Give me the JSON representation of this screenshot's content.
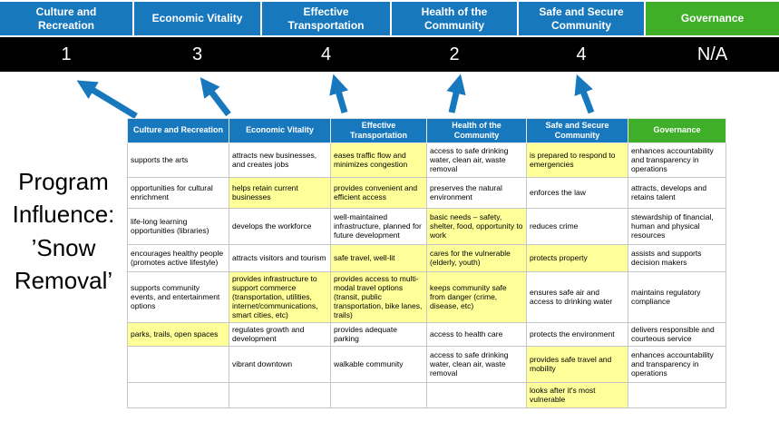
{
  "banner": {
    "columns": [
      {
        "label": "Culture and Recreation",
        "score": "1"
      },
      {
        "label": "Economic Vitality",
        "score": "3"
      },
      {
        "label": "Effective Transportation",
        "score": "4"
      },
      {
        "label": "Health of the Community",
        "score": "2"
      },
      {
        "label": "Safe and Secure Community",
        "score": "4"
      },
      {
        "label": "Governance",
        "score": "N/A"
      }
    ]
  },
  "program_label": {
    "text": "Program Influence: ’Snow Removal’"
  },
  "colors": {
    "header_blue": "#1878BE",
    "header_green": "#3FAE29",
    "score_band": "#000000",
    "highlight_yellow": "#FFFF99",
    "arrow_blue": "#1878BE"
  },
  "table": {
    "headers": [
      {
        "label": "Culture and Recreation",
        "color": "blue"
      },
      {
        "label": "Economic Vitality",
        "color": "blue"
      },
      {
        "label": "Effective Transportation",
        "color": "blue"
      },
      {
        "label": "Health of the Community",
        "color": "blue"
      },
      {
        "label": "Safe and Secure Community",
        "color": "blue"
      },
      {
        "label": "Governance",
        "color": "green"
      }
    ],
    "rows": [
      [
        {
          "text": "supports the arts",
          "highlight": false
        },
        {
          "text": "attracts new businesses, and creates jobs",
          "highlight": false
        },
        {
          "text": "eases traffic flow and minimizes congestion",
          "highlight": true
        },
        {
          "text": "access to safe drinking water, clean air, waste removal",
          "highlight": false
        },
        {
          "text": "is prepared to respond to emergencies",
          "highlight": true
        },
        {
          "text": "enhances accountability and transparency in operations",
          "highlight": false
        }
      ],
      [
        {
          "text": "opportunities for cultural enrichment",
          "highlight": false
        },
        {
          "text": "helps retain current businesses",
          "highlight": true
        },
        {
          "text": "provides convenient and efficient access",
          "highlight": true
        },
        {
          "text": "preserves the natural environment",
          "highlight": false
        },
        {
          "text": "enforces the law",
          "highlight": false
        },
        {
          "text": "attracts, develops and retains talent",
          "highlight": false
        }
      ],
      [
        {
          "text": "life-long learning opportunities (libraries)",
          "highlight": false
        },
        {
          "text": "develops the workforce",
          "highlight": false
        },
        {
          "text": "well-maintained infrastructure, planned for future development",
          "highlight": false
        },
        {
          "text": "basic needs – safety, shelter, food, opportunity to work",
          "highlight": true
        },
        {
          "text": "reduces crime",
          "highlight": false
        },
        {
          "text": "stewardship of financial, human and physical resources",
          "highlight": false
        }
      ],
      [
        {
          "text": "encourages healthy people (promotes active lifestyle)",
          "highlight": false
        },
        {
          "text": "attracts visitors and tourism",
          "highlight": false
        },
        {
          "text": "safe travel, well-lit",
          "highlight": true
        },
        {
          "text": "cares for the vulnerable (elderly, youth)",
          "highlight": true
        },
        {
          "text": "protects property",
          "highlight": true
        },
        {
          "text": "assists and supports decision makers",
          "highlight": false
        }
      ],
      [
        {
          "text": "supports community events, and entertainment options",
          "highlight": false
        },
        {
          "text": "provides infrastructure to support commerce (transportation, utilities, internet/communications, smart cities, etc)",
          "highlight": true
        },
        {
          "text": "provides access to multi-modal travel options (transit, public transportation, bike lanes, trails)",
          "highlight": true
        },
        {
          "text": "keeps community safe from danger (crime, disease, etc)",
          "highlight": true
        },
        {
          "text": "ensures safe air and access to drinking water",
          "highlight": false
        },
        {
          "text": "maintains regulatory compliance",
          "highlight": false
        }
      ],
      [
        {
          "text": "parks, trails, open spaces",
          "highlight": true
        },
        {
          "text": "regulates growth and development",
          "highlight": false
        },
        {
          "text": "provides adequate parking",
          "highlight": false
        },
        {
          "text": "access to health care",
          "highlight": false
        },
        {
          "text": "protects the environment",
          "highlight": false
        },
        {
          "text": "delivers responsible and courteous service",
          "highlight": false
        }
      ],
      [
        {
          "text": "",
          "highlight": false
        },
        {
          "text": "vibrant downtown",
          "highlight": false
        },
        {
          "text": "walkable community",
          "highlight": false
        },
        {
          "text": "access to safe drinking water, clean air, waste removal",
          "highlight": false
        },
        {
          "text": "provides safe travel and mobility",
          "highlight": true
        },
        {
          "text": "enhances accountability and transparency in operations",
          "highlight": false
        }
      ],
      [
        {
          "text": "",
          "highlight": false
        },
        {
          "text": "",
          "highlight": false
        },
        {
          "text": "",
          "highlight": false
        },
        {
          "text": "",
          "highlight": false
        },
        {
          "text": "looks after it's most vulnerable",
          "highlight": true
        },
        {
          "text": "",
          "highlight": false
        }
      ]
    ]
  }
}
